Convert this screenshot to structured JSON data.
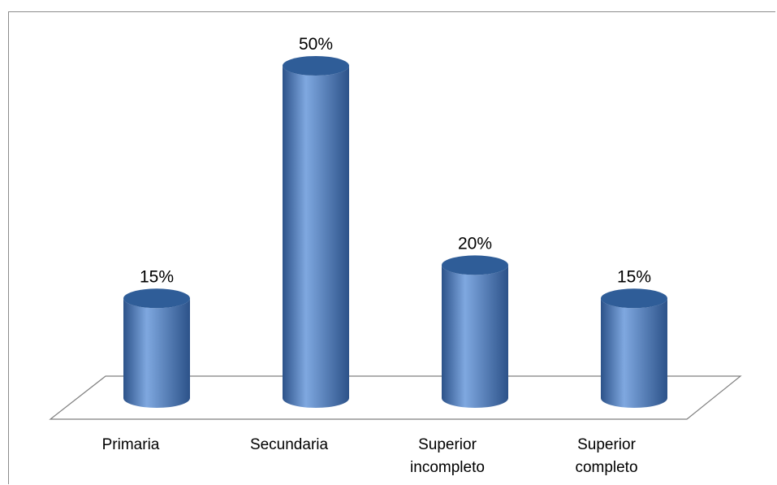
{
  "chart_data": {
    "type": "bar",
    "categories": [
      [
        "Primaria"
      ],
      [
        "Secundaria"
      ],
      [
        "Superior",
        "incompleto"
      ],
      [
        "Superior",
        "completo"
      ]
    ],
    "values": [
      15,
      50,
      20,
      15
    ],
    "data_labels": [
      "15%",
      "50%",
      "20%",
      "15%"
    ],
    "ylim": [
      0,
      50
    ],
    "value_format": "percent",
    "title": "",
    "xlabel": "",
    "ylabel": "",
    "grid": false,
    "legend": "none",
    "colors": {
      "bar_light": "#7FA8E0",
      "bar_mid": "#4F81BD",
      "bar_dark": "#2C5289",
      "bar_top": "#2F5D98",
      "floor_line": "#7f7f7f",
      "frame": "#8c8c8c"
    }
  }
}
